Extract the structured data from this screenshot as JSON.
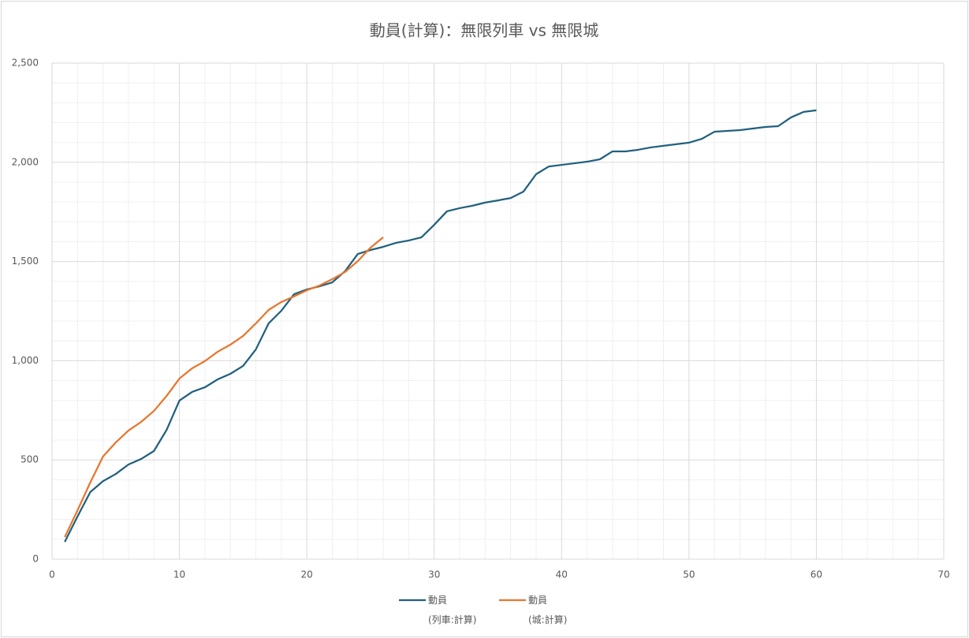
{
  "chart_data": {
    "type": "line",
    "title": "動員(計算)：無限列車 vs 無限城",
    "series": [
      {
        "name": "動員(列車:計算)",
        "color": "#21607f",
        "x": [
          1,
          2,
          3,
          4,
          5,
          6,
          7,
          8,
          9,
          10,
          11,
          12,
          13,
          14,
          15,
          16,
          17,
          18,
          19,
          20,
          21,
          22,
          23,
          24,
          25,
          26,
          27,
          28,
          29,
          30,
          31,
          32,
          33,
          34,
          35,
          36,
          37,
          38,
          39,
          40,
          41,
          42,
          43,
          44,
          45,
          46,
          47,
          48,
          49,
          50,
          51,
          52,
          53,
          54,
          55,
          56,
          57,
          58,
          59,
          60
        ],
        "values": [
          87,
          215,
          338,
          393,
          429,
          477,
          505,
          545,
          652,
          799,
          843,
          866,
          906,
          934,
          974,
          1057,
          1188,
          1252,
          1335,
          1359,
          1375,
          1395,
          1451,
          1538,
          1558,
          1574,
          1594,
          1606,
          1622,
          1685,
          1753,
          1769,
          1781,
          1797,
          1808,
          1820,
          1852,
          1940,
          1979,
          1987,
          1995,
          2003,
          2015,
          2055,
          2055,
          2063,
          2075,
          2083,
          2091,
          2099,
          2118,
          2154,
          2158,
          2162,
          2170,
          2178,
          2182,
          2226,
          2254,
          2262
        ]
      },
      {
        "name": "動員(城:計算)",
        "color": "#e8762d",
        "x": [
          1,
          2,
          3,
          4,
          5,
          6,
          7,
          8,
          9,
          10,
          11,
          12,
          13,
          14,
          15,
          16,
          17,
          18,
          19,
          20,
          21,
          22,
          23,
          24,
          25,
          26
        ],
        "values": [
          111,
          246,
          386,
          517,
          588,
          648,
          692,
          747,
          823,
          910,
          962,
          998,
          1045,
          1081,
          1125,
          1188,
          1256,
          1296,
          1324,
          1355,
          1379,
          1411,
          1447,
          1502,
          1570,
          1622
        ]
      }
    ],
    "xlim": [
      0,
      70
    ],
    "xticks": [
      0,
      10,
      20,
      30,
      40,
      50,
      60,
      70
    ],
    "ylim": [
      0,
      2500
    ],
    "yticks": [
      0,
      500,
      {
        "value": 1000,
        "label": "1,000"
      },
      {
        "value": 1500,
        "label": "1,500"
      },
      {
        "value": 2000,
        "label": "2,000"
      },
      {
        "value": 2500,
        "label": "2,500"
      }
    ],
    "grid": true,
    "legend": "bottom"
  }
}
